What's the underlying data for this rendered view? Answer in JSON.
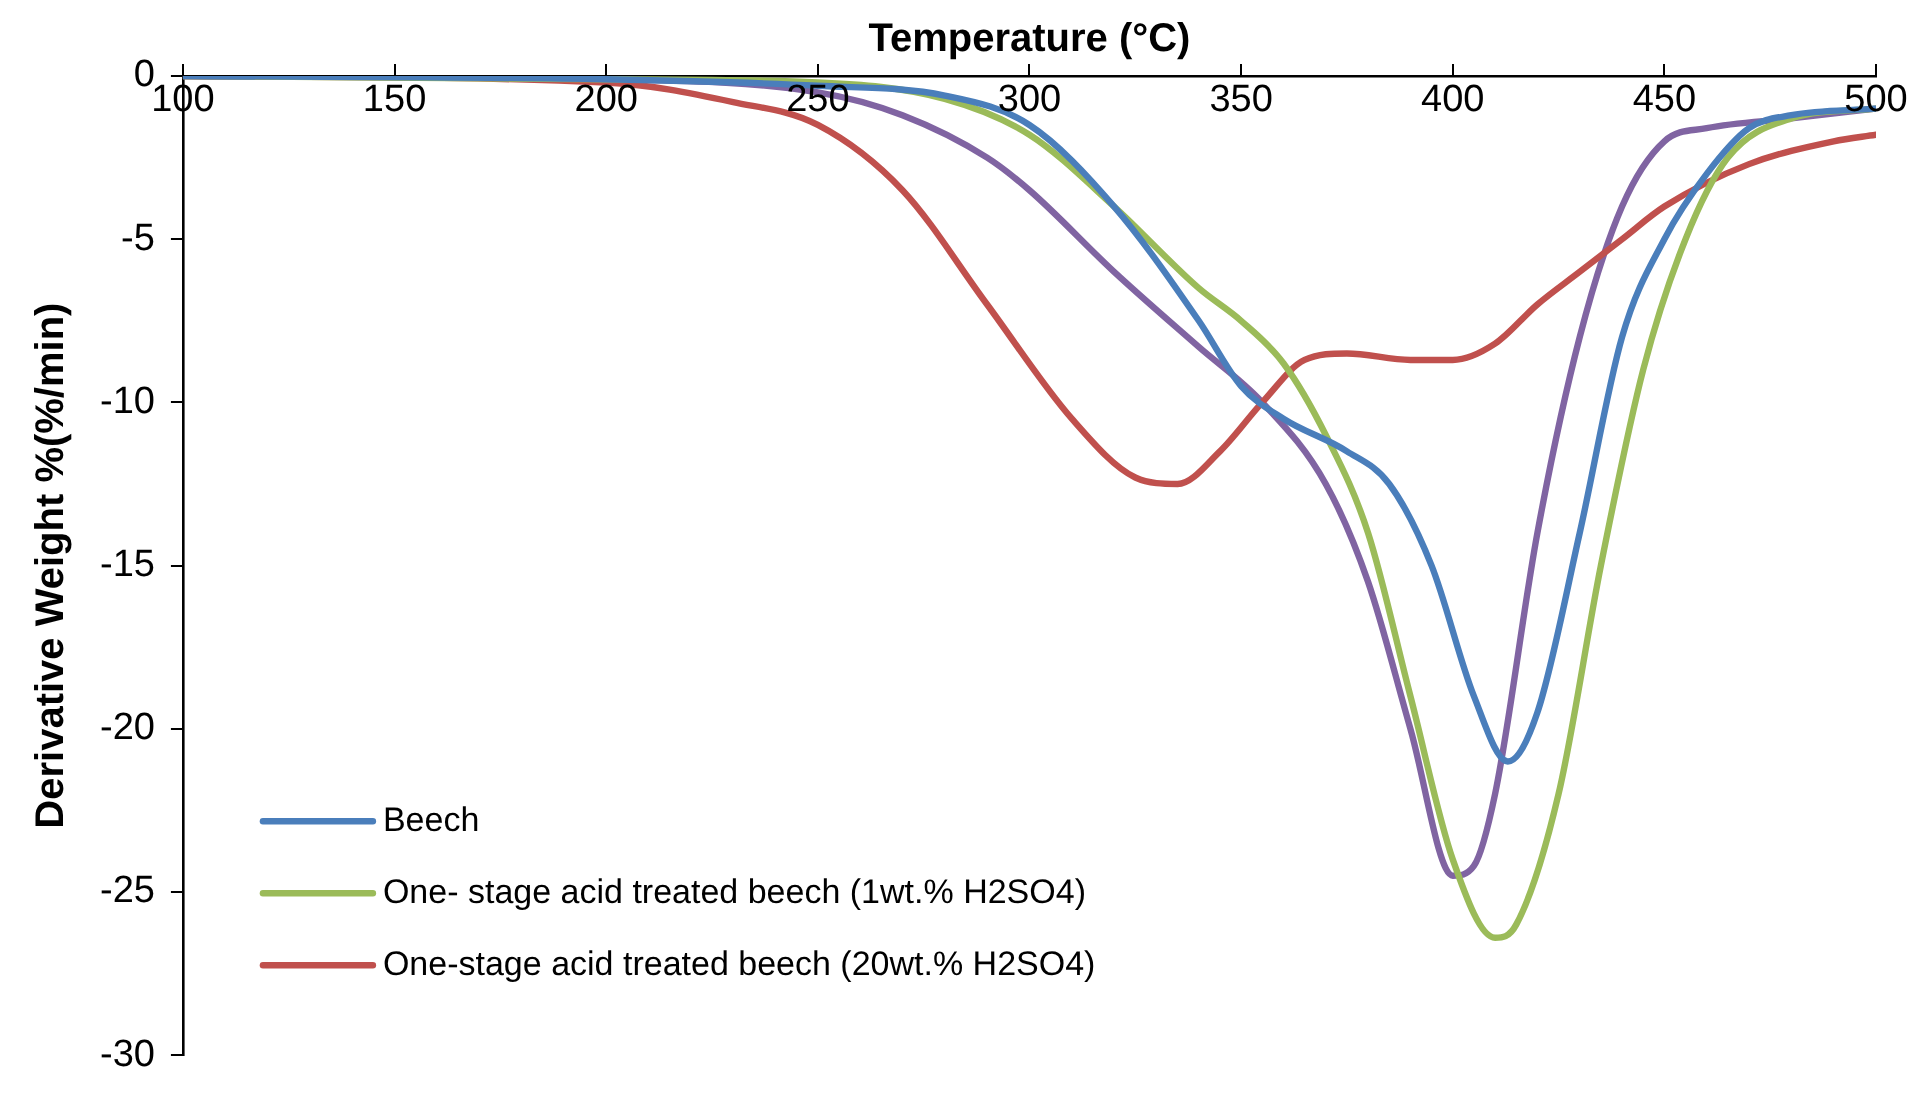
{
  "chart_data": {
    "type": "line",
    "xlabel": "Temperature (°C)",
    "ylabel": "Derivative Weight %(%/min)",
    "xlim": [
      100,
      500
    ],
    "xticks": [
      100,
      150,
      200,
      250,
      300,
      350,
      400,
      450,
      500
    ],
    "ylim": [
      -30,
      0
    ],
    "yticks": [
      -30,
      -25,
      -20,
      -15,
      -10,
      -5,
      0
    ],
    "grid": false,
    "legend": "bottom left",
    "marker": "none",
    "line_style": "solid",
    "series": [
      {
        "name": "Beech",
        "color": "#4a7ebb",
        "x": [
          100,
          200,
          250,
          280,
          300,
          320,
          340,
          350,
          360,
          375,
          385,
          395,
          405,
          413,
          420,
          430,
          440,
          450,
          460,
          470,
          480,
          500
        ],
        "values": [
          0,
          -0.1,
          -0.3,
          -0.6,
          -1.5,
          -4,
          -7.5,
          -9.5,
          -10.5,
          -11.5,
          -12.5,
          -15,
          -19,
          -21,
          -19.5,
          -14,
          -8,
          -5,
          -3,
          -1.6,
          -1.2,
          -1
        ]
      },
      {
        "name": "One- stage acid treated beech (1wt.% H2SO4)",
        "color": "#9bbb59",
        "x": [
          100,
          200,
          250,
          280,
          300,
          320,
          340,
          350,
          360,
          370,
          380,
          390,
          400,
          410,
          415,
          425,
          435,
          445,
          455,
          465,
          480,
          500
        ],
        "values": [
          0,
          -0.1,
          -0.2,
          -0.7,
          -1.8,
          -4,
          -6.5,
          -7.5,
          -8.8,
          -11,
          -14,
          -19,
          -24,
          -26.4,
          -26,
          -22,
          -15,
          -9,
          -5,
          -2.5,
          -1.3,
          -1
        ]
      },
      {
        "name": "One-stage acid treated beech (20wt.% H2SO4)",
        "color": "#c0504d",
        "x": [
          100,
          200,
          230,
          250,
          270,
          290,
          310,
          325,
          335,
          345,
          355,
          365,
          375,
          390,
          400,
          410,
          420,
          430,
          440,
          450,
          470,
          490,
          500
        ],
        "values": [
          0,
          -0.2,
          -0.8,
          -1.5,
          -3.5,
          -7,
          -10.5,
          -12.3,
          -12.5,
          -11.5,
          -10,
          -8.7,
          -8.5,
          -8.7,
          -8.7,
          -8.2,
          -7,
          -6,
          -5,
          -4,
          -2.7,
          -2,
          -1.8
        ]
      },
      {
        "color": "#8064a2",
        "x": [
          100,
          200,
          250,
          270,
          290,
          300,
          320,
          340,
          355,
          370,
          380,
          390,
          400,
          405,
          410,
          420,
          430,
          440,
          450,
          460,
          480,
          500
        ],
        "values": [
          0,
          -0.1,
          -0.5,
          -1.2,
          -2.5,
          -3.5,
          -6,
          -8.3,
          -10,
          -12.5,
          -15.5,
          -20,
          -24.5,
          -24.2,
          -22,
          -14,
          -8,
          -4,
          -2,
          -1.6,
          -1.3,
          -1
        ]
      }
    ]
  }
}
